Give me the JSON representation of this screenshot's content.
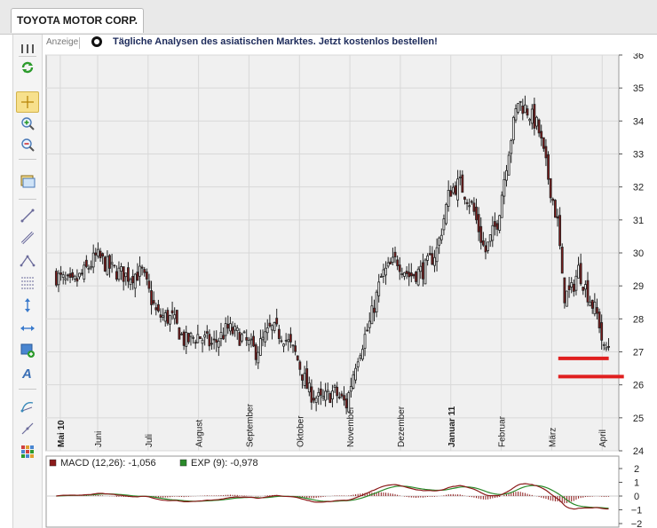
{
  "tab": {
    "title": "TOYOTA MOTOR CORP."
  },
  "ad": {
    "label": "Anzeige",
    "text": "Tägliche Analysen des asiatischen Marktes. Jetzt kostenlos bestellen!"
  },
  "toolbar": {
    "items": [
      "grip-icon",
      "refresh-icon",
      "crosshair-icon",
      "zoom-in-icon",
      "zoom-out-icon",
      "window-icon",
      "line-icon",
      "ruler-icon",
      "triangle-icon",
      "fibonacci-icon",
      "vertical-line-icon",
      "horizontal-line-icon",
      "add-box-icon",
      "text-icon",
      "arc-icon",
      "trend-line-icon",
      "grid-icon"
    ],
    "active": "crosshair-icon"
  },
  "colors": {
    "up": "#ffffff",
    "down": "#7f1a1a",
    "macd": "#8b1a1a",
    "signal": "#2a8a2a",
    "marker": "#e02020"
  },
  "chart_data": [
    {
      "type": "candlestick",
      "title": "",
      "ylim": [
        24,
        36
      ],
      "y_ticks": [
        24,
        25,
        26,
        27,
        28,
        29,
        30,
        31,
        32,
        33,
        34,
        35,
        36
      ],
      "x_labels": [
        {
          "label": "Mai 10",
          "bold": true,
          "at": 0.08
        },
        {
          "label": "Juni",
          "bold": false,
          "at": 0.82
        },
        {
          "label": "Juli",
          "bold": false,
          "at": 1.82
        },
        {
          "label": "August",
          "bold": false,
          "at": 2.82
        },
        {
          "label": "September",
          "bold": false,
          "at": 3.82
        },
        {
          "label": "Oktober",
          "bold": false,
          "at": 4.82
        },
        {
          "label": "November",
          "bold": false,
          "at": 5.82
        },
        {
          "label": "Dezember",
          "bold": false,
          "at": 6.82
        },
        {
          "label": "Januar 11",
          "bold": true,
          "at": 7.82
        },
        {
          "label": "Februar",
          "bold": false,
          "at": 8.82
        },
        {
          "label": "März",
          "bold": false,
          "at": 9.82
        },
        {
          "label": "April",
          "bold": false,
          "at": 10.82
        }
      ],
      "x_range_months": [
        -0.2,
        11.15
      ],
      "months_anchor_close": [
        {
          "m": 0,
          "v": 29.3
        },
        {
          "m": 0.3,
          "v": 29.0
        },
        {
          "m": 0.55,
          "v": 29.4
        },
        {
          "m": 0.8,
          "v": 29.9
        },
        {
          "m": 1.1,
          "v": 29.5
        },
        {
          "m": 1.4,
          "v": 29.3
        },
        {
          "m": 1.7,
          "v": 29.4
        },
        {
          "m": 2.0,
          "v": 28.1
        },
        {
          "m": 2.3,
          "v": 28.0
        },
        {
          "m": 2.55,
          "v": 27.3
        },
        {
          "m": 2.8,
          "v": 27.5
        },
        {
          "m": 3.1,
          "v": 27.2
        },
        {
          "m": 3.4,
          "v": 27.7
        },
        {
          "m": 3.7,
          "v": 27.4
        },
        {
          "m": 3.95,
          "v": 27.0
        },
        {
          "m": 4.25,
          "v": 27.7
        },
        {
          "m": 4.5,
          "v": 27.5
        },
        {
          "m": 4.75,
          "v": 26.9
        },
        {
          "m": 5.0,
          "v": 25.8
        },
        {
          "m": 5.25,
          "v": 25.5
        },
        {
          "m": 5.5,
          "v": 25.8
        },
        {
          "m": 5.75,
          "v": 25.4
        },
        {
          "m": 5.95,
          "v": 26.8
        },
        {
          "m": 6.2,
          "v": 27.8
        },
        {
          "m": 6.45,
          "v": 29.3
        },
        {
          "m": 6.75,
          "v": 29.8
        },
        {
          "m": 7.0,
          "v": 29.3
        },
        {
          "m": 7.3,
          "v": 29.5
        },
        {
          "m": 7.55,
          "v": 30.1
        },
        {
          "m": 7.8,
          "v": 31.9
        },
        {
          "m": 8.0,
          "v": 32.1
        },
        {
          "m": 8.25,
          "v": 31.4
        },
        {
          "m": 8.5,
          "v": 30.0
        },
        {
          "m": 8.75,
          "v": 31.0
        },
        {
          "m": 8.95,
          "v": 33.0
        },
        {
          "m": 9.15,
          "v": 34.6
        },
        {
          "m": 9.35,
          "v": 34.3
        },
        {
          "m": 9.55,
          "v": 33.8
        },
        {
          "m": 9.75,
          "v": 32.3
        },
        {
          "m": 9.95,
          "v": 30.8
        },
        {
          "m": 10.05,
          "v": 28.7
        },
        {
          "m": 10.2,
          "v": 28.8
        },
        {
          "m": 10.35,
          "v": 29.5
        },
        {
          "m": 10.55,
          "v": 28.7
        },
        {
          "m": 10.75,
          "v": 28.0
        },
        {
          "m": 10.85,
          "v": 27.0
        },
        {
          "m": 10.95,
          "v": 27.2
        }
      ],
      "support_lines": [
        {
          "m_start": 9.95,
          "m_end": 10.95,
          "v": 26.8
        },
        {
          "m_start": 9.95,
          "m_end": 11.25,
          "v": 26.25
        }
      ]
    },
    {
      "type": "line",
      "series": [
        {
          "name": "MACD (12,26)",
          "legend_value": "-1,056"
        },
        {
          "name": "EXP (9)",
          "legend_value": "-0,978"
        }
      ],
      "ylim": [
        -2,
        2
      ],
      "y_ticks": [
        2,
        1,
        0,
        -1,
        -2
      ]
    }
  ]
}
